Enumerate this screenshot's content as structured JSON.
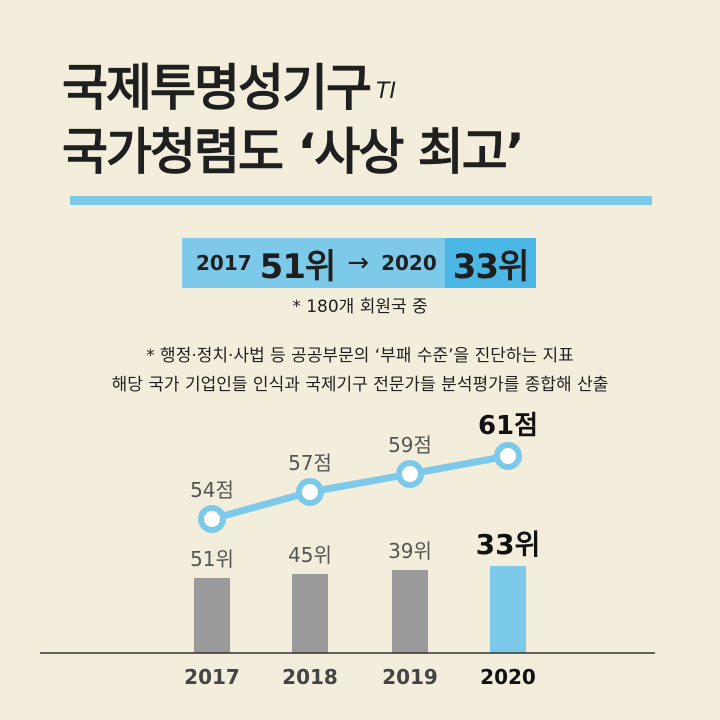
{
  "title": {
    "line1": "국제투명성기구",
    "ti": "TI",
    "line2": "국가청렴도 ‘사상 최고’"
  },
  "rank_box": {
    "from_year": "2017",
    "from_rank": "51위",
    "arrow": "→",
    "to_year": "2020",
    "to_rank": "33위"
  },
  "notes": {
    "countries": "* 180개 회원국 중",
    "desc1": "* 행정·정치·사법 등 공공부문의 ‘부패 수준’을 진단하는 지표",
    "desc2": "해당 국가 기업인들 인식과 국제기구 전문가들 분석평가를 종합해 산출"
  },
  "colors": {
    "background": "#f3eedc",
    "accent": "#7cc9ea",
    "accent_dark": "#4bb7e4",
    "bar_gray": "#9a9a9a",
    "bar_highlight": "#7cc9ea",
    "text": "#1f1f1f"
  },
  "chart_data": {
    "type": "bar+line",
    "categories": [
      "2017",
      "2018",
      "2019",
      "2020"
    ],
    "series": [
      {
        "type": "bar",
        "values": [
          51,
          45,
          39,
          33
        ],
        "labels": [
          "51위",
          "45위",
          "39위",
          "33위"
        ],
        "highlight_index": 3
      },
      {
        "type": "line",
        "values": [
          54,
          57,
          59,
          61
        ],
        "labels": [
          "54점",
          "57점",
          "59점",
          "61점"
        ]
      }
    ],
    "grid": false,
    "legend": "none"
  }
}
